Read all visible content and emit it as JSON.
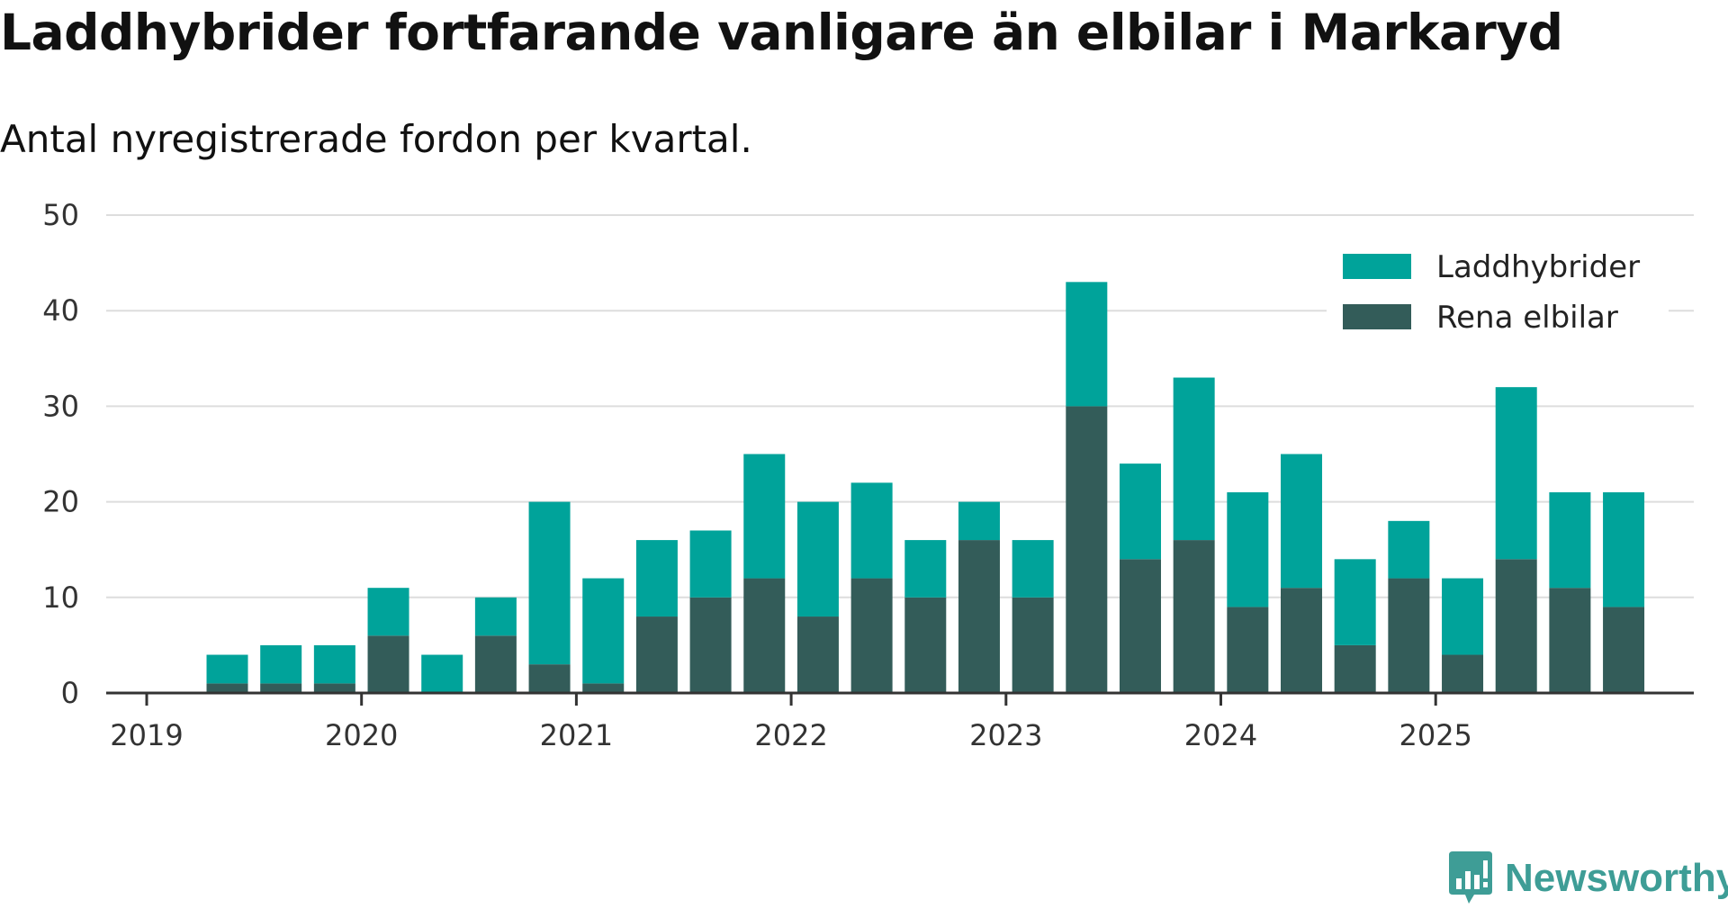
{
  "chart_data": {
    "type": "bar",
    "stacked": true,
    "title": "Laddhybrider fortfarande vanligare än elbilar i Markaryd",
    "subtitle": "Antal nyregistrerade fordon per kvartal.",
    "xlabel": "",
    "ylabel": "",
    "ylim": [
      0,
      50
    ],
    "yticks": [
      "0",
      "10",
      "20",
      "30",
      "40",
      "50"
    ],
    "xticks": [
      "2019",
      "2020",
      "2021",
      "2022",
      "2023",
      "2024",
      "2025"
    ],
    "grid": true,
    "legend_position": "top-right",
    "categories": [
      "2019 Q2",
      "2019 Q3",
      "2019 Q4",
      "2020 Q1",
      "2020 Q2",
      "2020 Q3",
      "2020 Q4",
      "2021 Q1",
      "2021 Q2",
      "2021 Q3",
      "2021 Q4",
      "2022 Q1",
      "2022 Q2",
      "2022 Q3",
      "2022 Q4",
      "2023 Q1",
      "2023 Q2",
      "2023 Q3",
      "2023 Q4",
      "2024 Q1",
      "2024 Q2",
      "2024 Q3",
      "2024 Q4",
      "2025 Q1",
      "2025 Q2",
      "2025 Q3",
      "2025 Q4"
    ],
    "series": [
      {
        "name": "Rena elbilar",
        "color": "#335c59",
        "values": [
          1,
          1,
          1,
          6,
          0,
          6,
          3,
          1,
          8,
          10,
          12,
          8,
          12,
          10,
          16,
          10,
          30,
          14,
          16,
          9,
          11,
          5,
          12,
          4,
          14,
          11,
          9
        ]
      },
      {
        "name": "Laddhybrider",
        "color": "#00a39a",
        "values": [
          3,
          4,
          4,
          5,
          4,
          4,
          17,
          11,
          8,
          7,
          13,
          12,
          10,
          6,
          4,
          6,
          13,
          10,
          17,
          12,
          14,
          9,
          6,
          8,
          18,
          10,
          12
        ]
      }
    ],
    "legend": [
      "Laddhybrider",
      "Rena elbilar"
    ]
  },
  "brand": {
    "name": "Newsworthy",
    "color": "#3e9d96"
  },
  "colors": {
    "grid": "#dddddd",
    "axis": "#333333"
  }
}
